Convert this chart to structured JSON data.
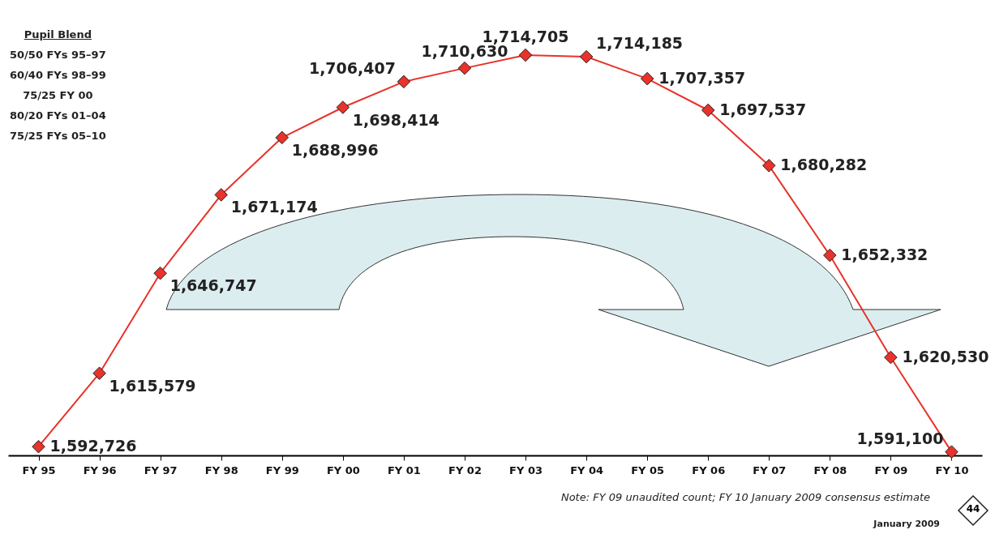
{
  "chart_data": {
    "type": "line",
    "categories": [
      "FY 95",
      "FY 96",
      "FY 97",
      "FY 98",
      "FY 99",
      "FY 00",
      "FY 01",
      "FY 02",
      "FY 03",
      "FY 04",
      "FY 05",
      "FY 06",
      "FY 07",
      "FY 08",
      "FY 09",
      "FY 10"
    ],
    "series": [
      {
        "color": "#e8322b",
        "values": [
          1592726,
          1615579,
          1646747,
          1671174,
          1688996,
          1698414,
          1706407,
          1710630,
          1714705,
          1714185,
          1707357,
          1697537,
          1680282,
          1652332,
          1620530,
          1591100
        ],
        "value_labels": [
          "1,592,726",
          "1,615,579",
          "1,646,747",
          "1,671,174",
          "1,688,996",
          "1,698,414",
          "1,706,407",
          "1,710,630",
          "1,714,705",
          "1,714,185",
          "1,707,357",
          "1,697,537",
          "1,680,282",
          "1,652,332",
          "1,620,530",
          "1,591,100"
        ]
      }
    ],
    "marker": "diamond",
    "line_style": "solid",
    "grid": false,
    "tick_labels": "x",
    "annotations": [
      "Pupil Blend",
      "50/50  FYs 95–97",
      "60/40  FYs 98–99",
      "75/25  FY 00",
      "80/20  FYs 01–04",
      "75/25  FYs 05–10",
      "Note: FY 09 unaudited count; FY 10 January 2009 consensus estimate",
      "January 2009",
      "44"
    ]
  }
}
